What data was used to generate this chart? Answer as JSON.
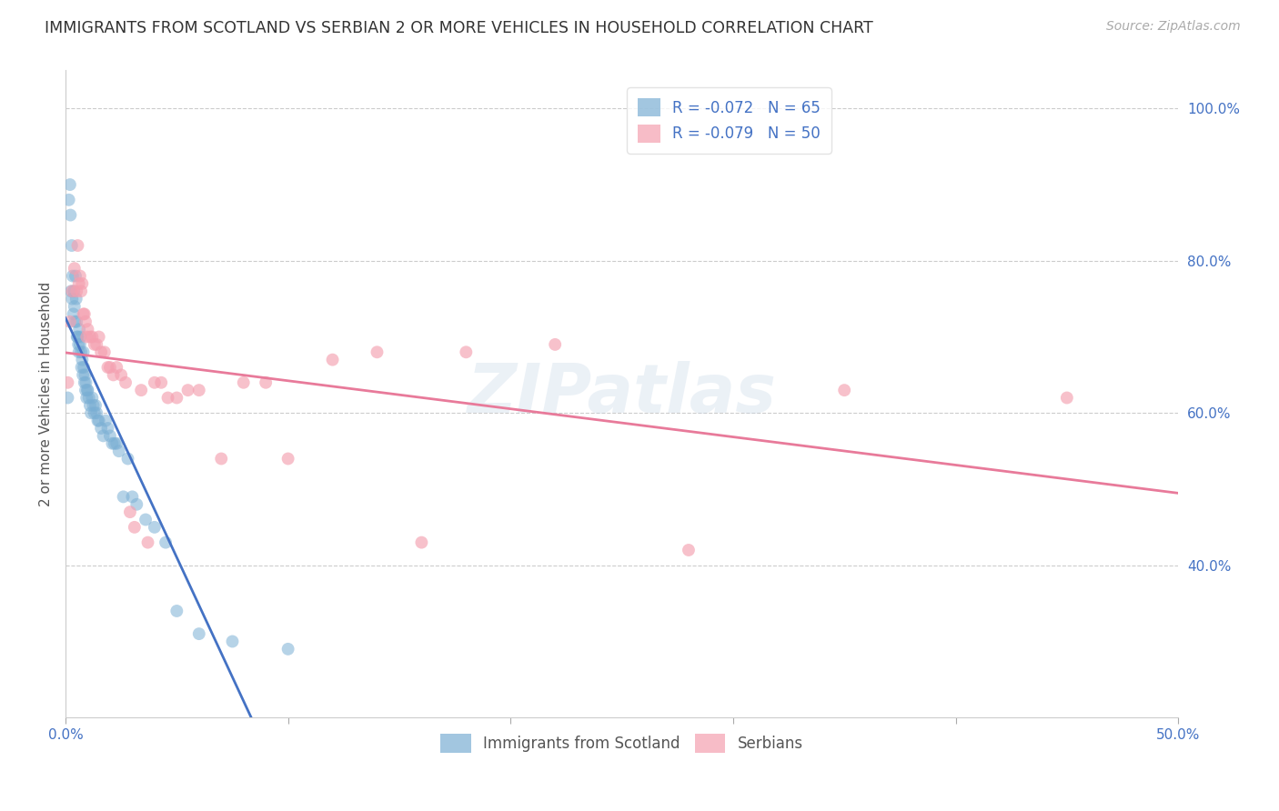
{
  "title": "IMMIGRANTS FROM SCOTLAND VS SERBIAN 2 OR MORE VEHICLES IN HOUSEHOLD CORRELATION CHART",
  "source": "Source: ZipAtlas.com",
  "ylabel": "2 or more Vehicles in Household",
  "watermark": "ZIPatlas",
  "xlim": [
    0.0,
    0.5
  ],
  "ylim": [
    0.2,
    1.05
  ],
  "xticks": [
    0.0,
    0.1,
    0.2,
    0.3,
    0.4,
    0.5
  ],
  "xticklabels": [
    "0.0%",
    "",
    "",
    "",
    "",
    "50.0%"
  ],
  "yticks_right": [
    0.4,
    0.6,
    0.8,
    1.0
  ],
  "yticklabels_right": [
    "40.0%",
    "60.0%",
    "80.0%",
    "100.0%"
  ],
  "scotland_R": -0.072,
  "scotland_N": 65,
  "serbian_R": -0.079,
  "serbian_N": 50,
  "scotland_color": "#7bafd4",
  "serbian_color": "#f4a0b0",
  "scotland_line_color": "#4472c4",
  "serbian_line_color": "#e87a9a",
  "legend_label_scotland": "Immigrants from Scotland",
  "legend_label_serbian": "Serbians",
  "scotland_x": [
    0.001,
    0.0015,
    0.002,
    0.0022,
    0.0025,
    0.0028,
    0.003,
    0.0032,
    0.0035,
    0.0038,
    0.004,
    0.0042,
    0.0045,
    0.0048,
    0.005,
    0.0052,
    0.0055,
    0.0058,
    0.006,
    0.0062,
    0.0065,
    0.0068,
    0.007,
    0.0072,
    0.0075,
    0.0078,
    0.008,
    0.0082,
    0.0085,
    0.0088,
    0.009,
    0.0092,
    0.0095,
    0.0098,
    0.01,
    0.0105,
    0.011,
    0.0115,
    0.012,
    0.0125,
    0.013,
    0.0135,
    0.014,
    0.0145,
    0.015,
    0.016,
    0.017,
    0.018,
    0.019,
    0.02,
    0.021,
    0.022,
    0.023,
    0.024,
    0.026,
    0.028,
    0.03,
    0.032,
    0.036,
    0.04,
    0.045,
    0.05,
    0.06,
    0.075,
    0.1
  ],
  "scotland_y": [
    0.62,
    0.88,
    0.9,
    0.86,
    0.76,
    0.82,
    0.75,
    0.78,
    0.73,
    0.76,
    0.74,
    0.72,
    0.78,
    0.75,
    0.72,
    0.7,
    0.7,
    0.69,
    0.68,
    0.71,
    0.69,
    0.7,
    0.68,
    0.66,
    0.67,
    0.65,
    0.68,
    0.66,
    0.64,
    0.65,
    0.63,
    0.64,
    0.62,
    0.63,
    0.63,
    0.62,
    0.61,
    0.6,
    0.62,
    0.61,
    0.6,
    0.61,
    0.6,
    0.59,
    0.59,
    0.58,
    0.57,
    0.59,
    0.58,
    0.57,
    0.56,
    0.56,
    0.56,
    0.55,
    0.49,
    0.54,
    0.49,
    0.48,
    0.46,
    0.45,
    0.43,
    0.34,
    0.31,
    0.3,
    0.29
  ],
  "serbian_x": [
    0.001,
    0.002,
    0.003,
    0.004,
    0.005,
    0.0055,
    0.006,
    0.0065,
    0.007,
    0.0075,
    0.008,
    0.0085,
    0.009,
    0.0095,
    0.01,
    0.011,
    0.012,
    0.013,
    0.014,
    0.015,
    0.016,
    0.0175,
    0.019,
    0.02,
    0.0215,
    0.023,
    0.025,
    0.027,
    0.029,
    0.031,
    0.034,
    0.037,
    0.04,
    0.043,
    0.046,
    0.05,
    0.055,
    0.06,
    0.07,
    0.08,
    0.09,
    0.1,
    0.12,
    0.14,
    0.16,
    0.18,
    0.22,
    0.28,
    0.35,
    0.45
  ],
  "serbian_y": [
    0.64,
    0.72,
    0.76,
    0.79,
    0.76,
    0.82,
    0.77,
    0.78,
    0.76,
    0.77,
    0.73,
    0.73,
    0.72,
    0.7,
    0.71,
    0.7,
    0.7,
    0.69,
    0.69,
    0.7,
    0.68,
    0.68,
    0.66,
    0.66,
    0.65,
    0.66,
    0.65,
    0.64,
    0.47,
    0.45,
    0.63,
    0.43,
    0.64,
    0.64,
    0.62,
    0.62,
    0.63,
    0.63,
    0.54,
    0.64,
    0.64,
    0.54,
    0.67,
    0.68,
    0.43,
    0.68,
    0.69,
    0.42,
    0.63,
    0.62
  ]
}
